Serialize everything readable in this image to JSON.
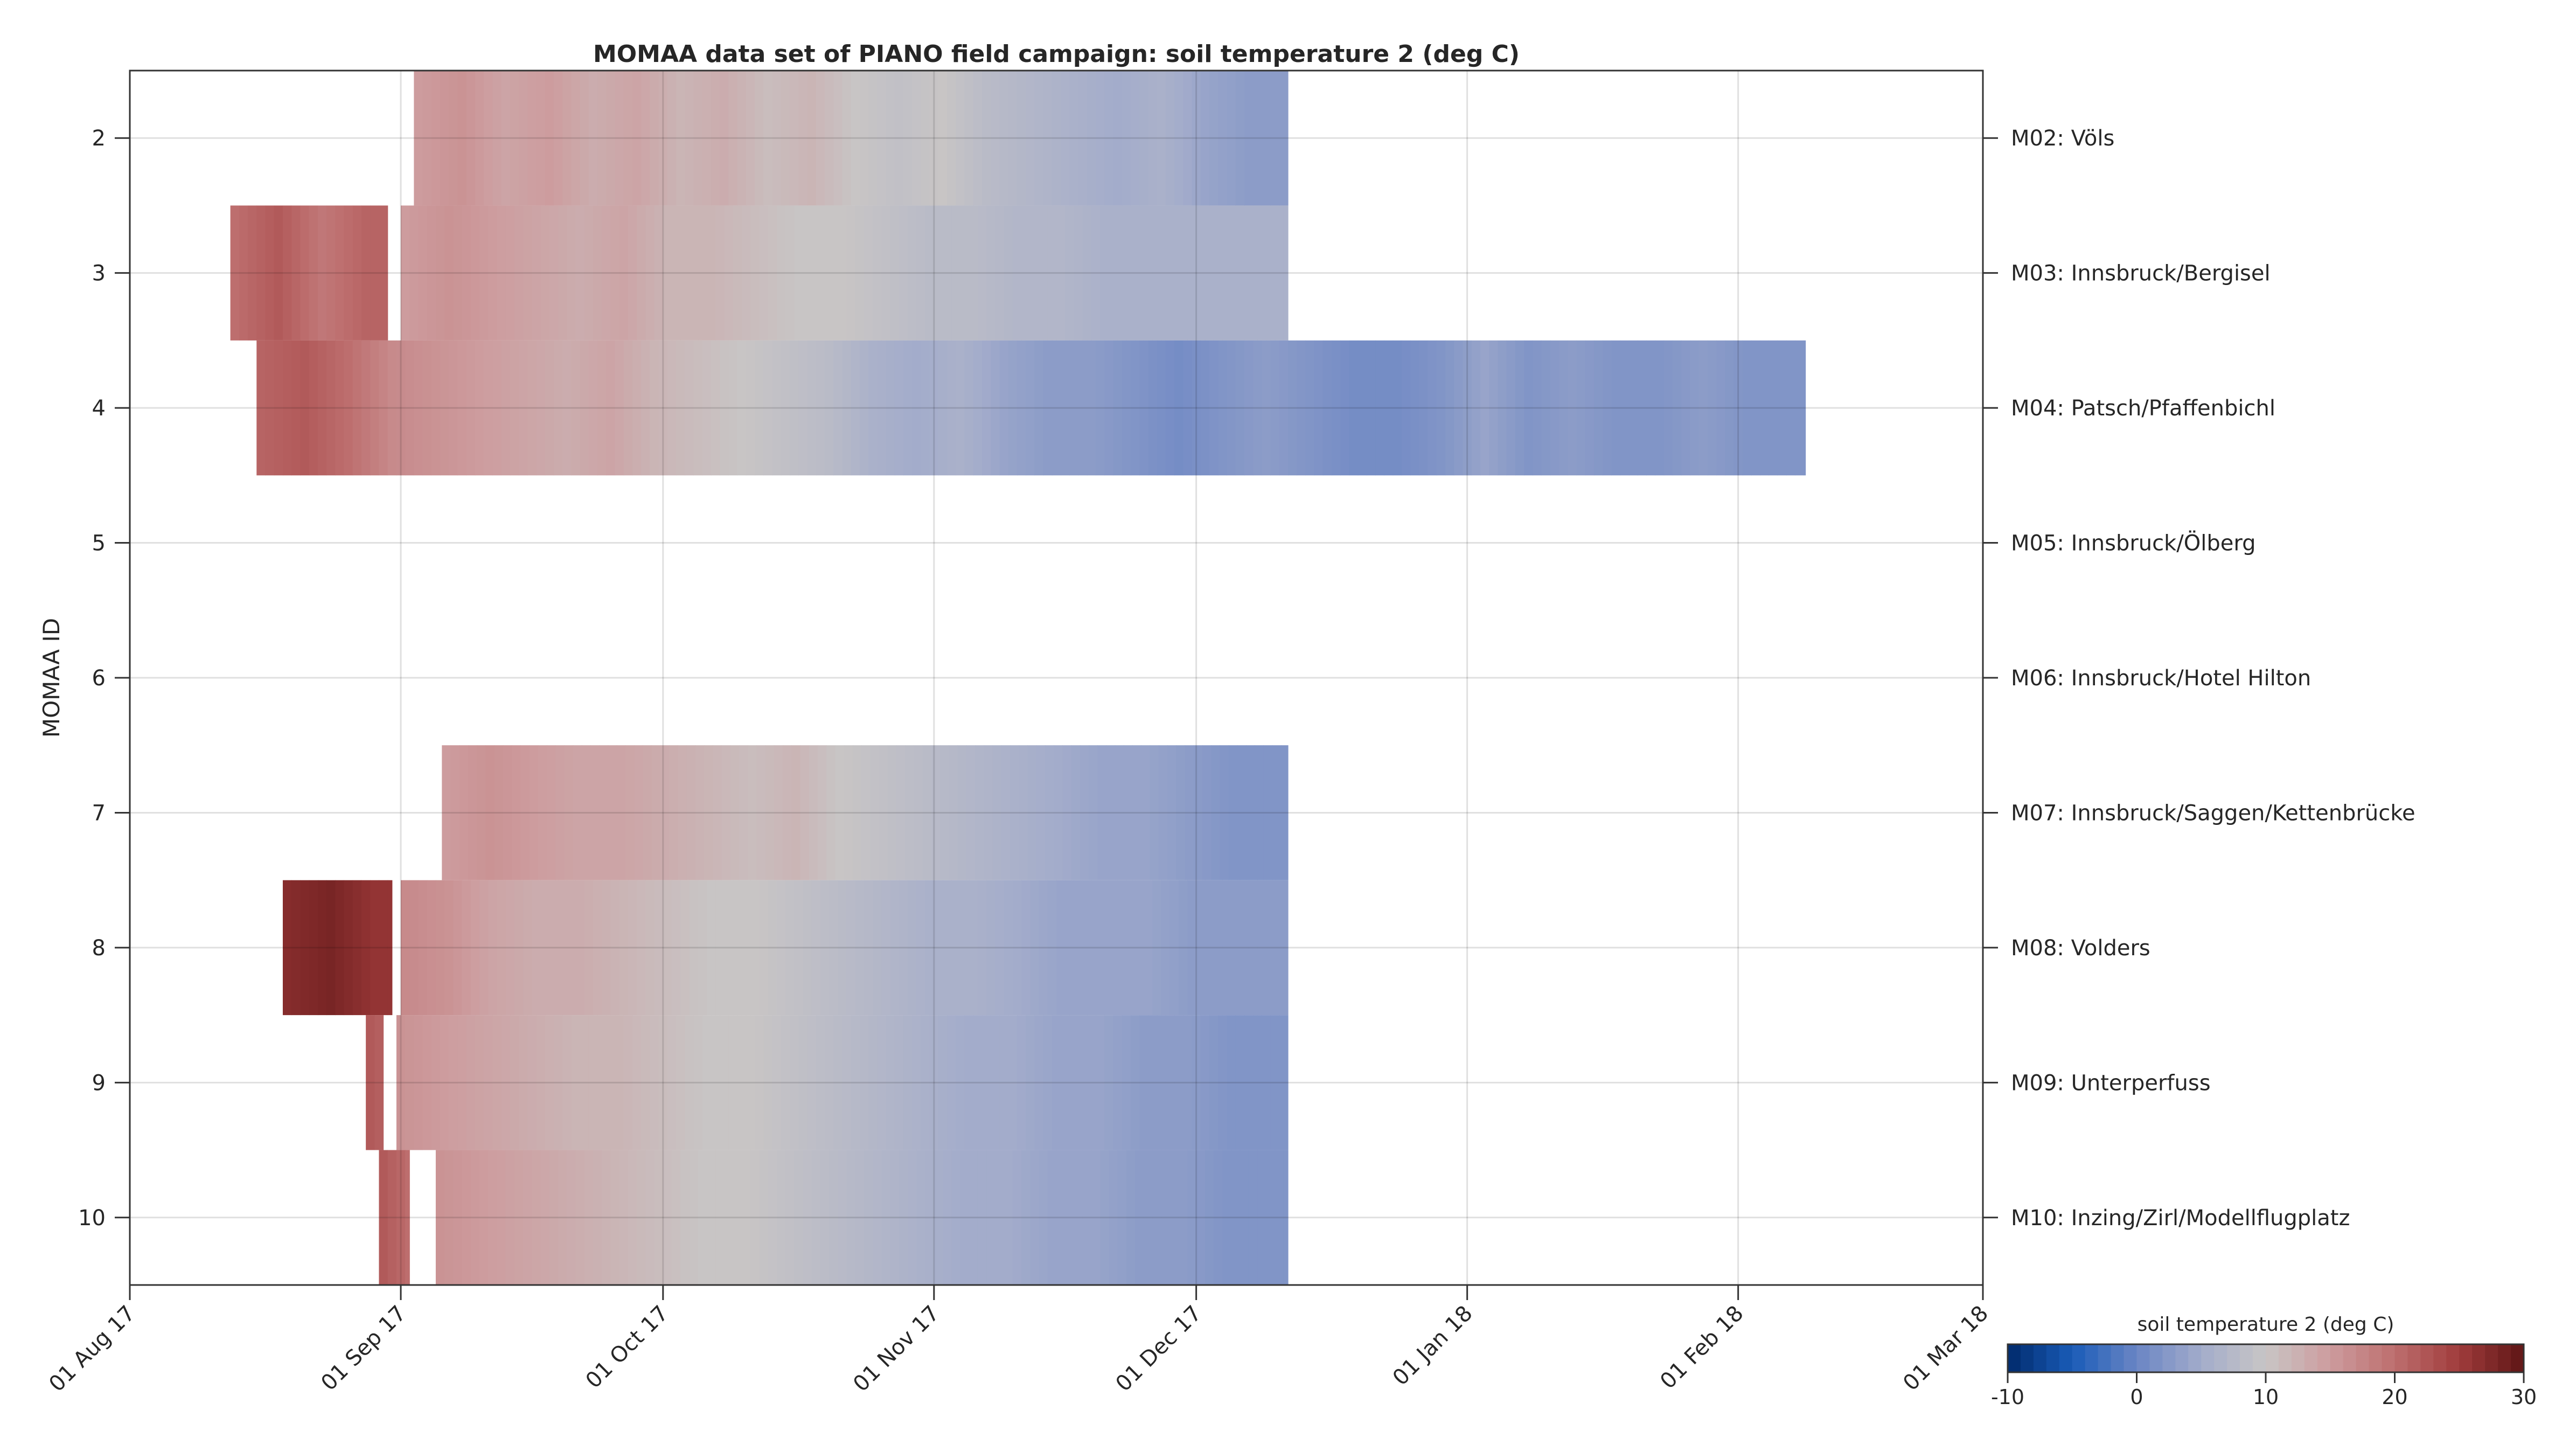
{
  "chart_data": {
    "type": "heatmap",
    "title": "MOMAA data set of PIANO field campaign: soil temperature 2 (deg C)",
    "xlabel": "",
    "ylabel": "MOMAA ID",
    "x_unit": "days since 01 Aug 17",
    "xlim": [
      0,
      212
    ],
    "ylim": [
      1.5,
      10.5
    ],
    "x_ticks": [
      {
        "day": 0,
        "label": "01 Aug 17"
      },
      {
        "day": 31,
        "label": "01 Sep 17"
      },
      {
        "day": 61,
        "label": "01 Oct 17"
      },
      {
        "day": 92,
        "label": "01 Nov 17"
      },
      {
        "day": 122,
        "label": "01 Dec 17"
      },
      {
        "day": 153,
        "label": "01 Jan 18"
      },
      {
        "day": 184,
        "label": "01 Feb 18"
      },
      {
        "day": 212,
        "label": "01 Mar 18"
      }
    ],
    "y_ticks": [
      "2",
      "3",
      "4",
      "5",
      "6",
      "7",
      "8",
      "9",
      "10"
    ],
    "grid": true,
    "stations": [
      {
        "id": 2,
        "label": "M02: Völs",
        "segments": [
          {
            "start": 32.5,
            "end": 132.5,
            "step": 5,
            "temps": [
              15,
              16,
              14,
              15,
              13,
              14,
              12,
              13,
              11,
              12,
              10,
              9,
              10,
              8,
              7,
              6,
              5,
              6,
              4,
              3,
              3
            ]
          }
        ]
      },
      {
        "id": 3,
        "label": "M03: Innsbruck/Bergisel",
        "segments": [
          {
            "start": 11.5,
            "end": 29.5,
            "step": 5,
            "temps": [
              20,
              22,
              19,
              21
            ]
          },
          {
            "start": 31,
            "end": 132.5,
            "step": 5,
            "temps": [
              15,
              16,
              15,
              14,
              13,
              14,
              12,
              12,
              11,
              10,
              10,
              9,
              8,
              8,
              7,
              7,
              6,
              6,
              6,
              6,
              6
            ]
          }
        ]
      },
      {
        "id": 4,
        "label": "M04: Patsch/Pfaffenbichl",
        "segments": [
          {
            "start": 14.5,
            "end": 191.7,
            "step": 5,
            "temps": [
              21,
              22,
              20,
              17,
              16,
              15,
              14,
              13,
              14,
              12,
              11,
              10,
              9,
              8,
              6,
              5,
              6,
              4,
              3,
              3,
              2,
              1,
              2,
              3,
              2,
              1,
              1,
              2,
              4,
              2,
              3,
              2,
              2,
              3,
              2,
              2
            ]
          }
        ]
      },
      {
        "id": 5,
        "label": "M05: Innsbruck/Ölberg",
        "segments": []
      },
      {
        "id": 6,
        "label": "M06: Innsbruck/Hotel Hilton",
        "segments": []
      },
      {
        "id": 7,
        "label": "M07: Innsbruck/Saggen/Kettenbrücke",
        "segments": [
          {
            "start": 35.7,
            "end": 132.5,
            "step": 5,
            "temps": [
              15,
              16,
              15,
              14,
              14,
              13,
              12,
              11,
              12,
              10,
              9,
              8,
              7,
              6,
              5,
              4,
              4,
              3,
              2,
              2
            ]
          }
        ]
      },
      {
        "id": 8,
        "label": "M08: Volders",
        "segments": [
          {
            "start": 17.5,
            "end": 30,
            "step": 5,
            "temps": [
              27,
              28,
              26
            ]
          },
          {
            "start": 31,
            "end": 132.5,
            "step": 5,
            "temps": [
              17,
              16,
              14,
              13,
              13,
              12,
              11,
              10,
              10,
              9,
              8,
              7,
              6,
              6,
              5,
              4,
              4,
              4,
              3,
              3,
              3
            ]
          }
        ]
      },
      {
        "id": 9,
        "label": "M09: Unterperfuss",
        "segments": [
          {
            "start": 27,
            "end": 29,
            "step": 2,
            "temps": [
              22,
              21
            ]
          },
          {
            "start": 30.5,
            "end": 132.5,
            "step": 5,
            "temps": [
              16,
              15,
              14,
              13,
              12,
              12,
              11,
              10,
              10,
              9,
              8,
              7,
              6,
              5,
              5,
              4,
              4,
              3,
              3,
              2,
              2
            ]
          }
        ]
      },
      {
        "id": 10,
        "label": "M10: Inzing/Zirl/Modellflugplatz",
        "segments": [
          {
            "start": 28.5,
            "end": 32,
            "step": 3,
            "temps": [
              22,
              20
            ]
          },
          {
            "start": 35,
            "end": 132.5,
            "step": 5,
            "temps": [
              16,
              15,
              14,
              13,
              12,
              11,
              10,
              10,
              9,
              8,
              7,
              6,
              5,
              5,
              4,
              4,
              3,
              3,
              2,
              2
            ]
          }
        ]
      }
    ],
    "colorbar": {
      "label": "soil temperature 2 (deg C)",
      "range": [
        -10,
        30
      ],
      "ticks": [
        "-10",
        "0",
        "10",
        "20",
        "30"
      ],
      "colors": [
        "#002a6b",
        "#1a5cb8",
        "#6a85c4",
        "#a3accb",
        "#c8c5c5",
        "#cd9c9e",
        "#bd6e6e",
        "#a03c3c",
        "#5e1515"
      ]
    }
  }
}
